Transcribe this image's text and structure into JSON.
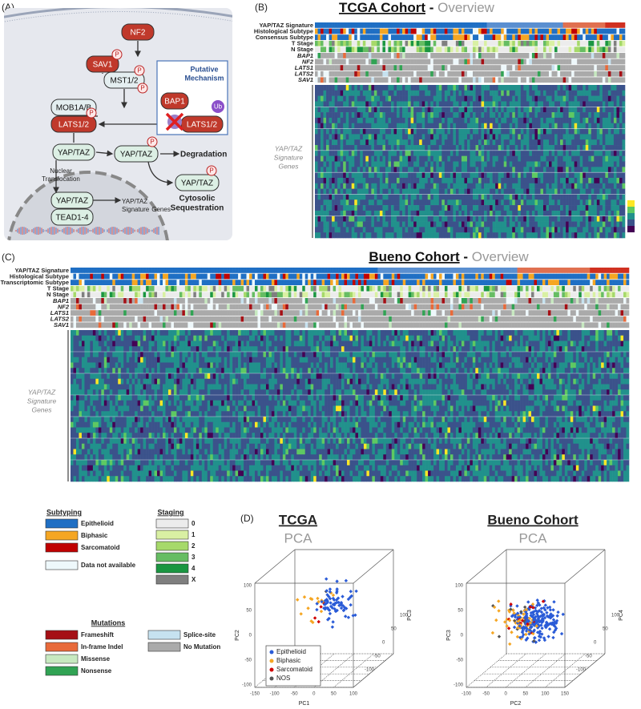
{
  "panel_a": {
    "label": "(A)",
    "nf2": "NF2",
    "sav1": "SAV1",
    "mst": "MST1/2",
    "mob": "MOB1A/B",
    "lats": "LATS1/2",
    "bap1": "BAP1",
    "lats_ub": "LATS1/2",
    "yap_left": "YAP/TAZ",
    "yap_mid": "YAP/TAZ",
    "yap_p": "YAP/TAZ",
    "yap_nuc": "YAP/TAZ",
    "tead": "TEAD1-4",
    "p": "P",
    "ub": "Ub",
    "mechanism": [
      "Putative",
      "Mechanism"
    ],
    "degradation": "Degradation",
    "sequestration": [
      "Cytosolic",
      "Sequestration"
    ],
    "nuclear": [
      "Nuclear",
      "Translocation"
    ],
    "genes": [
      "YAP/TAZ",
      "Signature",
      "Genes"
    ]
  },
  "panel_b": {
    "label": "(B)",
    "title": "TCGA Cohort",
    "separator": " - ",
    "subtitle": "Overview",
    "rows": [
      "YAP/TAZ Signature",
      "Histological Subtype",
      "Consensus Subtype",
      "T Stage",
      "N Stage",
      "BAP1",
      "NF2",
      "LATS1",
      "LATS2",
      "SAV1"
    ],
    "side_label": [
      "YAP/TAZ",
      "Signature",
      "Genes"
    ]
  },
  "panel_c": {
    "label": "(C)",
    "title": "Bueno Cohort",
    "separator": " - ",
    "subtitle": "Overview",
    "rows": [
      "YAP/TAZ Signature",
      "Histological Subtype",
      "Transcriptomic Subtype",
      "T Stage",
      "N Stage",
      "BAP1",
      "NF2",
      "LATS1",
      "LATS2",
      "SAV1"
    ],
    "side_label": [
      "YAP/TAZ",
      "Signature",
      "Genes"
    ]
  },
  "legend": {
    "subtyping": {
      "title": "Subtyping",
      "items": [
        {
          "label": "Epithelioid",
          "color": "#1f6fc4"
        },
        {
          "label": "Biphasic",
          "color": "#f5a623"
        },
        {
          "label": "Sarcomatoid",
          "color": "#c00000"
        }
      ],
      "na": {
        "label": "Data not available",
        "color": "#eef8fb"
      }
    },
    "staging": {
      "title": "Staging",
      "items": [
        {
          "label": "0",
          "color": "#ececec"
        },
        {
          "label": "1",
          "color": "#d9f0a3"
        },
        {
          "label": "2",
          "color": "#a6d96a"
        },
        {
          "label": "3",
          "color": "#66bd63"
        },
        {
          "label": "4",
          "color": "#1a9641"
        },
        {
          "label": "X",
          "color": "#7f7f7f"
        }
      ]
    },
    "mutations": {
      "title": "Mutations",
      "items": [
        {
          "label": "Frameshift",
          "color": "#a50f15"
        },
        {
          "label": "In-frame Indel",
          "color": "#e86a3a"
        },
        {
          "label": "Missense",
          "color": "#c7e9c0"
        },
        {
          "label": "Nonsense",
          "color": "#31a354"
        },
        {
          "label": "Splice-site",
          "color": "#c6e2f0"
        },
        {
          "label": "No Mutation",
          "color": "#aaaaaa"
        }
      ]
    }
  },
  "panel_d": {
    "label": "(D)",
    "plots": [
      {
        "title": "TCGA",
        "subtitle": "PCA",
        "x_label": "PC1",
        "y_label": "PC2",
        "z_label": "PC3",
        "x_ticks": [
          "-150",
          "-100",
          "-50",
          "0",
          "50",
          "100"
        ],
        "y_ticks": [
          "100",
          "50",
          "0",
          "-50",
          "-100"
        ],
        "z_ticks": [
          "100",
          "50",
          "0",
          "-50",
          "-100"
        ],
        "legend": [
          {
            "label": "Epithelioid",
            "color": "#2a5bd7"
          },
          {
            "label": "Biphasic",
            "color": "#f5a623"
          },
          {
            "label": "Sarcomatoid",
            "color": "#d00000"
          },
          {
            "label": "NOS",
            "color": "#555555"
          }
        ]
      },
      {
        "title": "Bueno Cohort",
        "subtitle": "PCA",
        "x_label": "PC2",
        "y_label": "PC3",
        "z_label": "PC4",
        "x_ticks": [
          "-100",
          "-50",
          "0",
          "50",
          "100",
          "150"
        ],
        "y_ticks": [
          "100",
          "50",
          "0",
          "-50",
          "-100"
        ],
        "z_ticks": [
          "100",
          "50",
          "0",
          "-50",
          "-100"
        ]
      }
    ]
  }
}
